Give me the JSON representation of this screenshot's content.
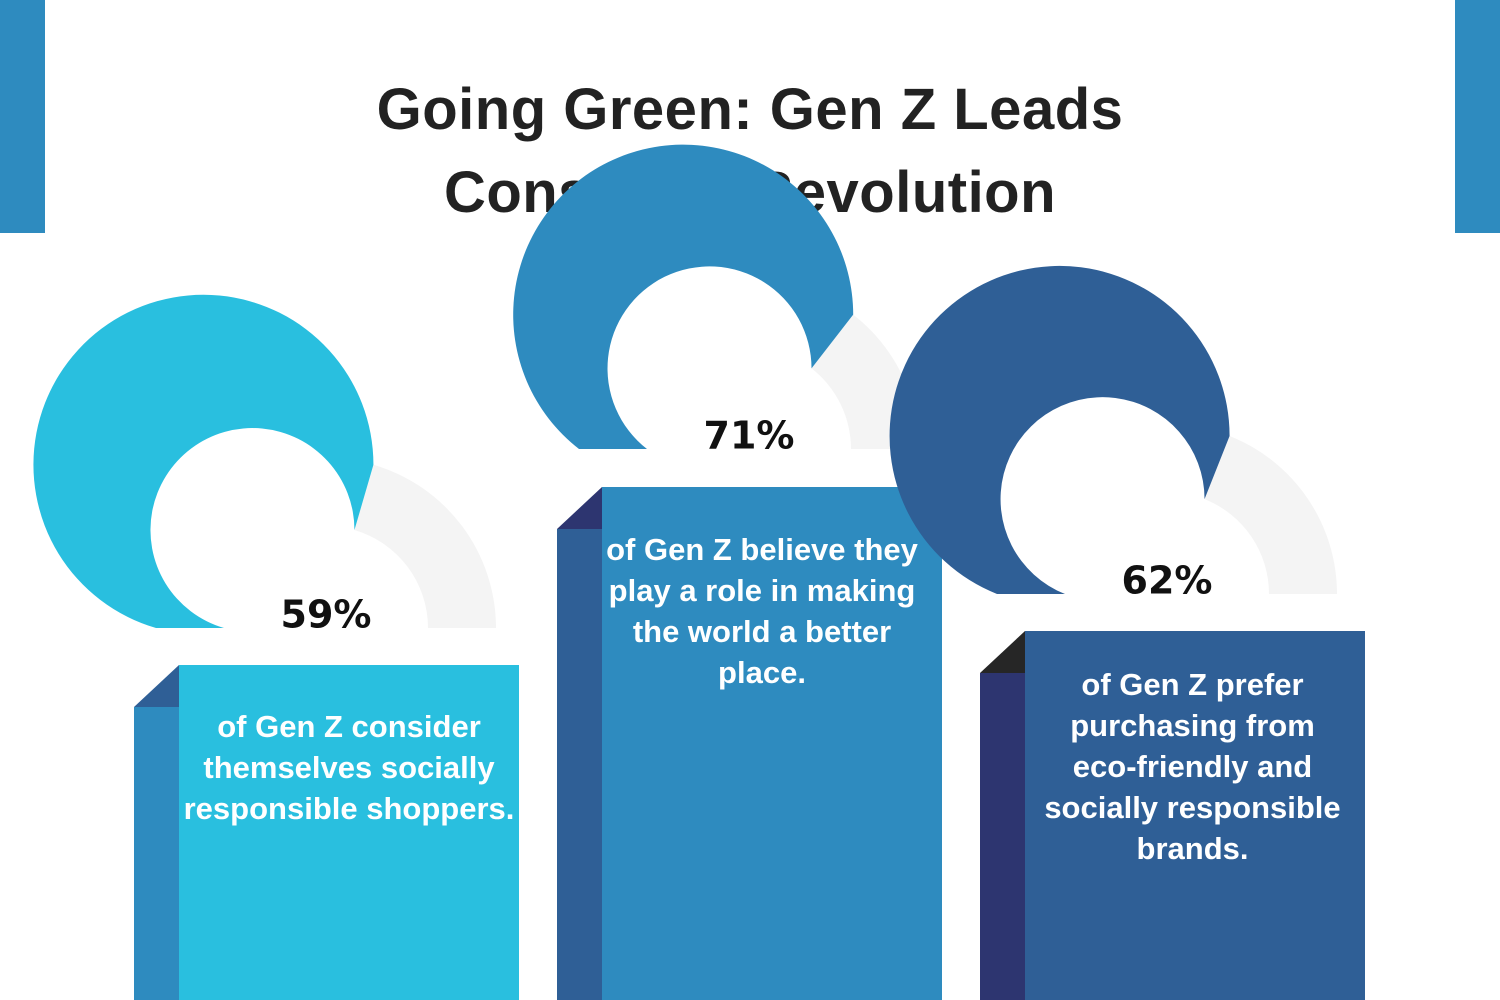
{
  "title_lines": [
    "Going Green: Gen Z Leads",
    "Consumer Revolution"
  ],
  "colors": {
    "corner": "#2E8BBF",
    "remainder": "#F4F4F4"
  },
  "chart_data": {
    "type": "pie",
    "title": "Going Green: Gen Z Leads Consumer Revolution",
    "series": [
      {
        "label": "59%",
        "value": 59,
        "color": "#29BFDF",
        "side": "#2E8BBF",
        "fold": "#2F5F96",
        "description": "of Gen Z consider themselves socially responsible shoppers."
      },
      {
        "label": "71%",
        "value": 71,
        "color": "#2E8BBF",
        "side": "#2F5F96",
        "fold": "#2D3570",
        "description": "of Gen Z believe they play a role in making the world a better place."
      },
      {
        "label": "62%",
        "value": 62,
        "color": "#2F5F96",
        "side": "#2D3570",
        "fold": "#262626",
        "description": "of Gen Z prefer purchasing from eco-friendly and socially responsible brands."
      }
    ]
  }
}
